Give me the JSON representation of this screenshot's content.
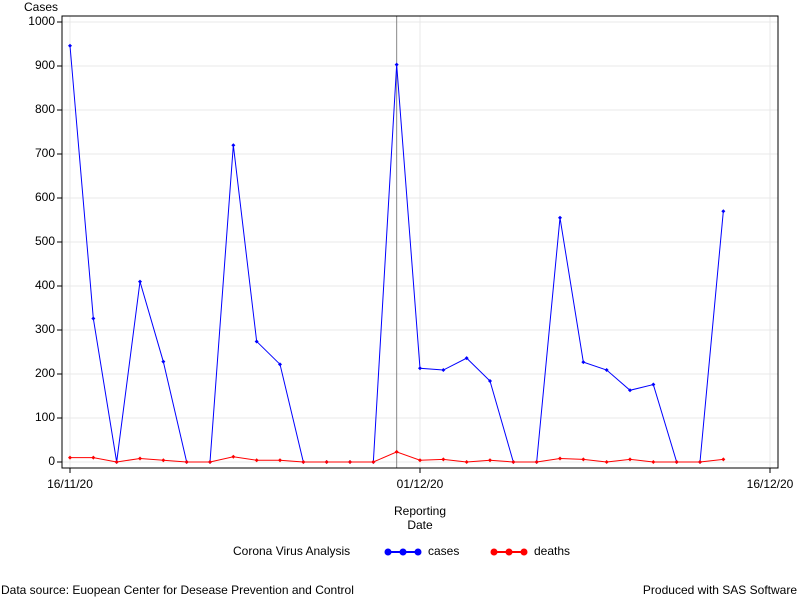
{
  "chart_data": {
    "type": "line",
    "y_label": "Cases",
    "x_label": "Reporting Date",
    "x": [
      "16/11/20",
      "17/11/20",
      "18/11/20",
      "19/11/20",
      "20/11/20",
      "21/11/20",
      "22/11/20",
      "23/11/20",
      "24/11/20",
      "25/11/20",
      "26/11/20",
      "27/11/20",
      "28/11/20",
      "29/11/20",
      "30/11/20",
      "01/12/20",
      "02/12/20",
      "03/12/20",
      "04/12/20",
      "05/12/20",
      "06/12/20",
      "07/12/20",
      "08/12/20",
      "09/12/20",
      "10/12/20",
      "11/12/20",
      "12/12/20",
      "13/12/20",
      "14/12/20"
    ],
    "series": [
      {
        "name": "cases",
        "color": "#0000ff",
        "values": [
          946,
          326,
          0,
          410,
          228,
          0,
          0,
          720,
          274,
          222,
          0,
          0,
          0,
          0,
          903,
          213,
          209,
          236,
          184,
          0,
          0,
          555,
          227,
          209,
          163,
          176,
          0,
          0,
          570
        ]
      },
      {
        "name": "deaths",
        "color": "#ff0000",
        "values": [
          10,
          10,
          0,
          8,
          4,
          0,
          0,
          12,
          4,
          4,
          0,
          0,
          0,
          0,
          23,
          4,
          6,
          0,
          4,
          0,
          0,
          8,
          6,
          0,
          6,
          0,
          0,
          0,
          6
        ]
      }
    ],
    "xlim": [
      "16/11/20",
      "16/12/20"
    ],
    "xticks": [
      "16/11/20",
      "01/12/20",
      "16/12/20"
    ],
    "ylim": [
      0,
      1000
    ],
    "yticks": [
      0,
      100,
      200,
      300,
      400,
      500,
      600,
      700,
      800,
      900,
      1000
    ],
    "grid": true,
    "reference_line_x": "30/11/20",
    "legend_title": "Corona Virus Analysis",
    "legend_position": "bottom",
    "footnote_left": "Data source: Euopean Center for Desease Prevention and Control",
    "footnote_right": "Produced with SAS Software"
  }
}
